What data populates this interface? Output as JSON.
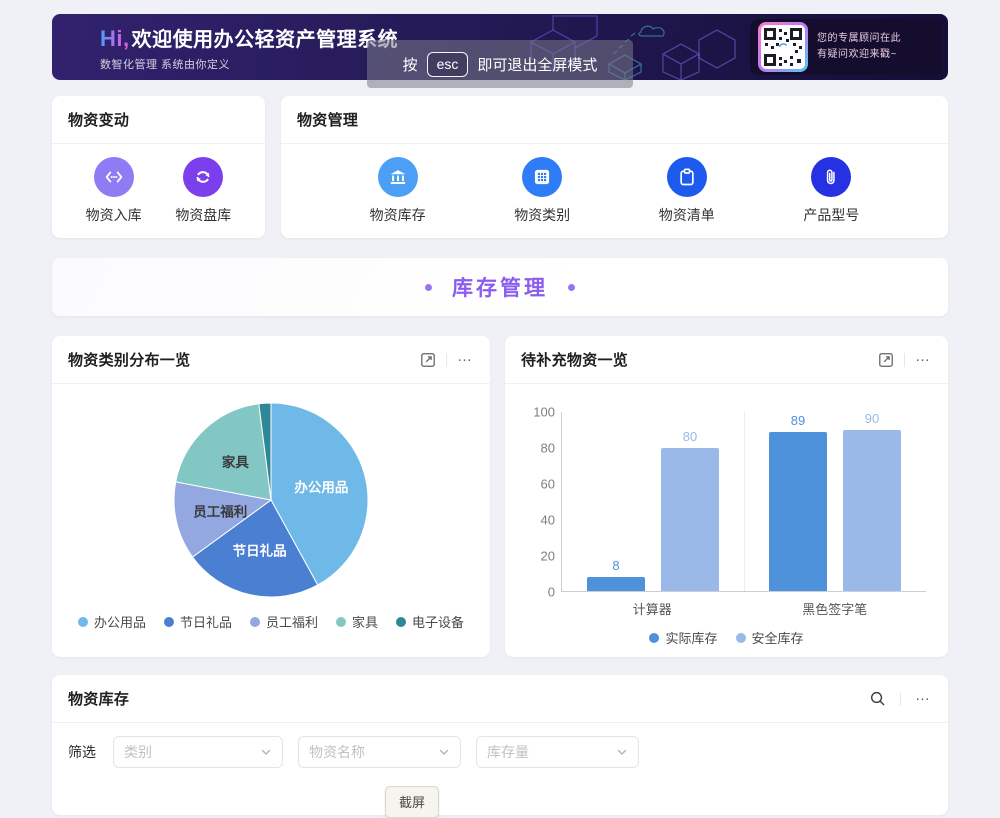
{
  "header": {
    "greeting": "Hi,",
    "title": "欢迎使用办公轻资产管理系统",
    "subtitle": "数智化管理 系统由你定义",
    "advisor": {
      "line1": "您的专属顾问在此",
      "line2": "有疑问欢迎来戳~"
    }
  },
  "fullscreen_toast": {
    "prefix": "按",
    "key": "esc",
    "suffix": "即可退出全屏模式"
  },
  "panels": {
    "material_change": {
      "title": "物资变动",
      "items": [
        {
          "label": "物资入库",
          "icon": "transfer-in-icon",
          "color": "#8F7BF3"
        },
        {
          "label": "物资盘库",
          "icon": "stocktake-cycle-icon",
          "color": "#7B3FEE"
        }
      ]
    },
    "material_management": {
      "title": "物资管理",
      "items": [
        {
          "label": "物资库存",
          "icon": "bank-icon",
          "color": "#4BA0F5"
        },
        {
          "label": "物资类别",
          "icon": "grid-icon",
          "color": "#2E7CF6"
        },
        {
          "label": "物资清单",
          "icon": "clipboard-icon",
          "color": "#1D5AEE"
        },
        {
          "label": "产品型号",
          "icon": "paperclip-icon",
          "color": "#2531E2"
        }
      ]
    },
    "section_title": "库存管理",
    "inventory": {
      "title": "物资库存",
      "filter_label": "筛选",
      "filters": [
        {
          "placeholder": "类别"
        },
        {
          "placeholder": "物资名称"
        },
        {
          "placeholder": "库存量"
        }
      ]
    },
    "screenshot_button": "截屏"
  },
  "chart_data": [
    {
      "id": "category_pie",
      "type": "pie",
      "title": "物资类别分布一览",
      "legend_position": "bottom",
      "slices": [
        {
          "label": "办公用品",
          "value": 42,
          "color": "#6FB9E8",
          "label_color": "#ffffff",
          "show_label": true
        },
        {
          "label": "节日礼品",
          "value": 23,
          "color": "#4A7FD1",
          "label_color": "#ffffff",
          "show_label": true
        },
        {
          "label": "员工福利",
          "value": 13,
          "color": "#93A8E0",
          "label_color": "#3a3a3e",
          "show_label": true
        },
        {
          "label": "家具",
          "value": 20,
          "color": "#82C7C3",
          "label_color": "#3a3a3e",
          "show_label": true
        },
        {
          "label": "电子设备",
          "value": 2,
          "color": "#2E8797",
          "label_color": "#ffffff",
          "show_label": false
        }
      ]
    },
    {
      "id": "restock_bar",
      "type": "bar",
      "title": "待补充物资一览",
      "categories": [
        "计算器",
        "黑色签字笔"
      ],
      "series": [
        {
          "name": "实际库存",
          "color": "#4E92DC",
          "values": [
            8,
            89
          ]
        },
        {
          "name": "安全库存",
          "color": "#9BB9E8",
          "values": [
            80,
            90
          ]
        }
      ],
      "ylim": [
        0,
        100
      ],
      "yticks": [
        0,
        20,
        40,
        60,
        80,
        100
      ],
      "grid": false,
      "legend_position": "bottom"
    }
  ]
}
